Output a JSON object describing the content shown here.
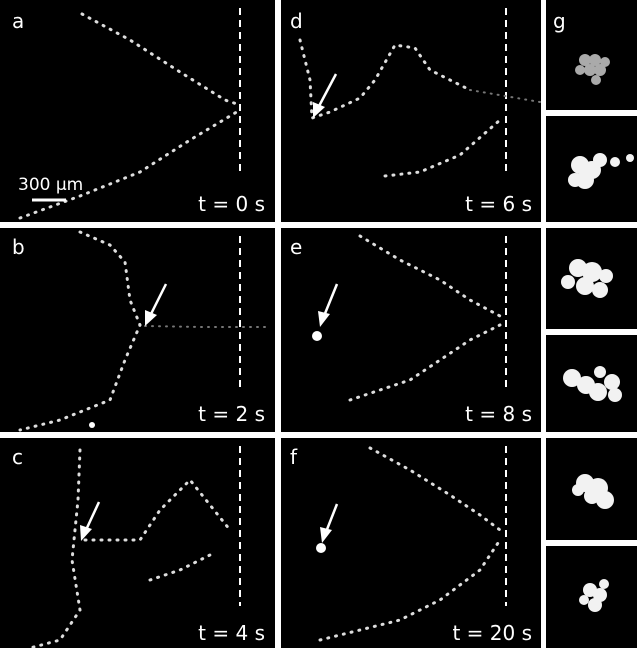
{
  "panels": [
    {
      "label": "a",
      "time": "t = 0 s"
    },
    {
      "label": "b",
      "time": "t = 2 s"
    },
    {
      "label": "c",
      "time": "t = 4 s"
    },
    {
      "label": "d",
      "time": "t = 6 s"
    },
    {
      "label": "e",
      "time": "t = 8 s"
    },
    {
      "label": "f",
      "time": "t = 20 s"
    }
  ],
  "scale_bar": "300 μm",
  "side_label": "g"
}
